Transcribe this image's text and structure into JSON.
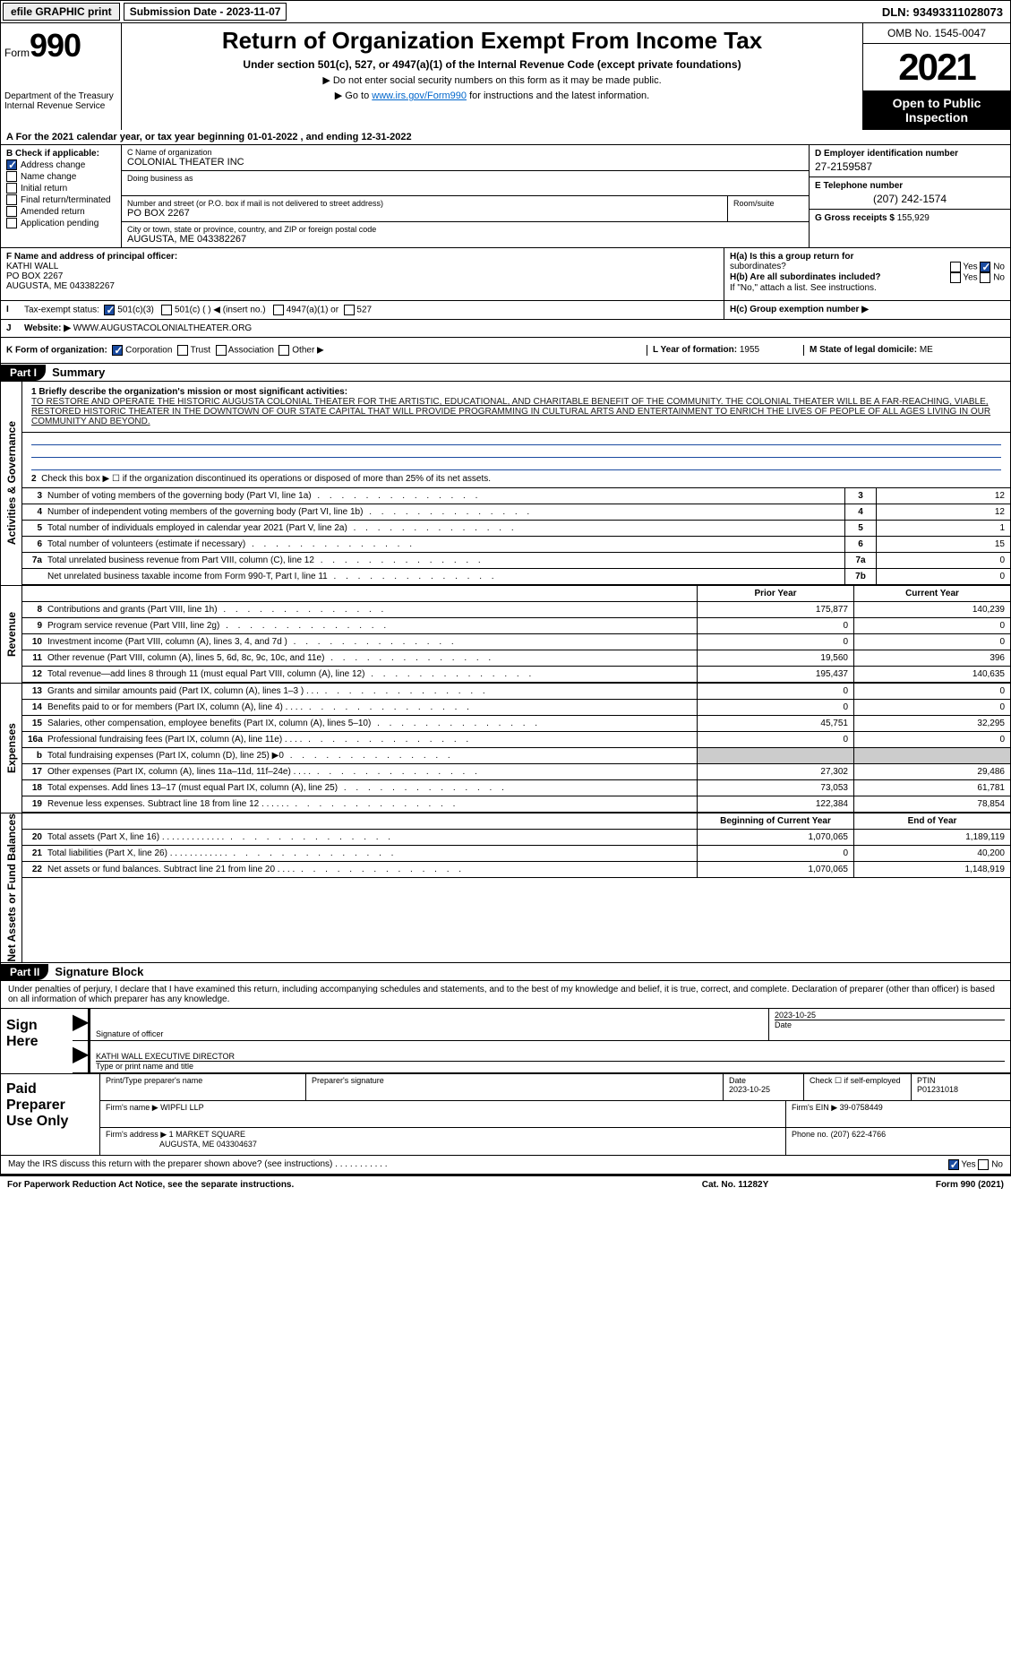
{
  "topbar": {
    "efile": "efile GRAPHIC print",
    "submission_date_label": "Submission Date - 2023-11-07",
    "dln": "DLN: 93493311028073"
  },
  "header": {
    "form_word": "Form",
    "form_number": "990",
    "dept": "Department of the Treasury",
    "irs": "Internal Revenue Service",
    "title": "Return of Organization Exempt From Income Tax",
    "subtitle": "Under section 501(c), 527, or 4947(a)(1) of the Internal Revenue Code (except private foundations)",
    "note1": "▶ Do not enter social security numbers on this form as it may be made public.",
    "note2_prefix": "▶ Go to ",
    "note2_link": "www.irs.gov/Form990",
    "note2_suffix": " for instructions and the latest information.",
    "omb": "OMB No. 1545-0047",
    "year": "2021",
    "open": "Open to Public Inspection"
  },
  "rowA": "A  For the 2021 calendar year, or tax year beginning 01-01-2022    , and ending 12-31-2022",
  "colB": {
    "header": "B Check if applicable:",
    "items": [
      {
        "label": "Address change",
        "checked": true
      },
      {
        "label": "Name change",
        "checked": false
      },
      {
        "label": "Initial return",
        "checked": false
      },
      {
        "label": "Final return/terminated",
        "checked": false
      },
      {
        "label": "Amended return",
        "checked": false
      },
      {
        "label": "Application pending",
        "checked": false
      }
    ]
  },
  "colC": {
    "name_label": "C Name of organization",
    "name": "COLONIAL THEATER INC",
    "dba_label": "Doing business as",
    "dba": "",
    "addr_label": "Number and street (or P.O. box if mail is not delivered to street address)",
    "addr": "PO BOX 2267",
    "room_label": "Room/suite",
    "city_label": "City or town, state or province, country, and ZIP or foreign postal code",
    "city": "AUGUSTA, ME  043382267"
  },
  "colD": {
    "label": "D Employer identification number",
    "ein": "27-2159587",
    "tel_label": "E Telephone number",
    "tel": "(207) 242-1574",
    "gross_label": "G Gross receipts $",
    "gross": "155,929"
  },
  "rowF": {
    "label": "F  Name and address of principal officer:",
    "name": "KATHI WALL",
    "addr": "PO BOX 2267",
    "city": "AUGUSTA, ME  043382267"
  },
  "rowH": {
    "ha_label": "H(a)  Is this a group return for",
    "ha_sub": "subordinates?",
    "hb_label": "H(b)  Are all subordinates included?",
    "hb_note": "If \"No,\" attach a list. See instructions.",
    "hc_label": "H(c)  Group exemption number ▶",
    "yes": "Yes",
    "no": "No"
  },
  "rowI": {
    "label": "I",
    "text": "Tax-exempt status:",
    "opt1": "501(c)(3)",
    "opt2": "501(c) (  ) ◀ (insert no.)",
    "opt3": "4947(a)(1) or",
    "opt4": "527"
  },
  "rowJ": {
    "label": "J",
    "text": "Website: ▶",
    "url": "WWW.AUGUSTACOLONIALTHEATER.ORG"
  },
  "rowK": {
    "label": "K Form of organization:",
    "corp": "Corporation",
    "trust": "Trust",
    "assoc": "Association",
    "other": "Other ▶",
    "year_label": "L Year of formation:",
    "year": "1955",
    "state_label": "M State of legal domicile:",
    "state": "ME"
  },
  "partI": {
    "header": "Part I",
    "title": "Summary",
    "side_gov": "Activities & Governance",
    "side_rev": "Revenue",
    "side_exp": "Expenses",
    "side_net": "Net Assets or Fund Balances",
    "line1_label": "1  Briefly describe the organization's mission or most significant activities:",
    "mission": "TO RESTORE AND OPERATE THE HISTORIC AUGUSTA COLONIAL THEATER FOR THE ARTISTIC, EDUCATIONAL, AND CHARITABLE BENEFIT OF THE COMMUNITY. THE COLONIAL THEATER WILL BE A FAR-REACHING, VIABLE, RESTORED HISTORIC THEATER IN THE DOWNTOWN OF OUR STATE CAPITAL THAT WILL PROVIDE PROGRAMMING IN CULTURAL ARTS AND ENTERTAINMENT TO ENRICH THE LIVES OF PEOPLE OF ALL AGES LIVING IN OUR COMMUNITY AND BEYOND.",
    "line2": "Check this box ▶ ☐  if the organization discontinued its operations or disposed of more than 25% of its net assets.",
    "rows_gov": [
      {
        "n": "3",
        "txt": "Number of voting members of the governing body (Part VI, line 1a)",
        "box": "3",
        "val": "12"
      },
      {
        "n": "4",
        "txt": "Number of independent voting members of the governing body (Part VI, line 1b)",
        "box": "4",
        "val": "12"
      },
      {
        "n": "5",
        "txt": "Total number of individuals employed in calendar year 2021 (Part V, line 2a)",
        "box": "5",
        "val": "1"
      },
      {
        "n": "6",
        "txt": "Total number of volunteers (estimate if necessary)",
        "box": "6",
        "val": "15"
      },
      {
        "n": "7a",
        "txt": "Total unrelated business revenue from Part VIII, column (C), line 12",
        "box": "7a",
        "val": "0"
      },
      {
        "n": "",
        "txt": "Net unrelated business taxable income from Form 990-T, Part I, line 11",
        "box": "7b",
        "val": "0"
      }
    ],
    "hdr_prior": "Prior Year",
    "hdr_current": "Current Year",
    "rows_rev": [
      {
        "n": "8",
        "txt": "Contributions and grants (Part VIII, line 1h)",
        "c1": "175,877",
        "c2": "140,239"
      },
      {
        "n": "9",
        "txt": "Program service revenue (Part VIII, line 2g)",
        "c1": "0",
        "c2": "0"
      },
      {
        "n": "10",
        "txt": "Investment income (Part VIII, column (A), lines 3, 4, and 7d )",
        "c1": "0",
        "c2": "0"
      },
      {
        "n": "11",
        "txt": "Other revenue (Part VIII, column (A), lines 5, 6d, 8c, 9c, 10c, and 11e)",
        "c1": "19,560",
        "c2": "396"
      },
      {
        "n": "12",
        "txt": "Total revenue—add lines 8 through 11 (must equal Part VIII, column (A), line 12)",
        "c1": "195,437",
        "c2": "140,635"
      }
    ],
    "rows_exp": [
      {
        "n": "13",
        "txt": "Grants and similar amounts paid (Part IX, column (A), lines 1–3 ) .  .  .",
        "c1": "0",
        "c2": "0"
      },
      {
        "n": "14",
        "txt": "Benefits paid to or for members (Part IX, column (A), line 4) .  .  .  .",
        "c1": "0",
        "c2": "0"
      },
      {
        "n": "15",
        "txt": "Salaries, other compensation, employee benefits (Part IX, column (A), lines 5–10)",
        "c1": "45,751",
        "c2": "32,295"
      },
      {
        "n": "16a",
        "txt": "Professional fundraising fees (Part IX, column (A), line 11e) .  .  .  .",
        "c1": "0",
        "c2": "0"
      },
      {
        "n": "b",
        "txt": "Total fundraising expenses (Part IX, column (D), line 25) ▶0",
        "c1": "",
        "c2": "",
        "gray": true
      },
      {
        "n": "17",
        "txt": "Other expenses (Part IX, column (A), lines 11a–11d, 11f–24e) .  .  .  .",
        "c1": "27,302",
        "c2": "29,486"
      },
      {
        "n": "18",
        "txt": "Total expenses. Add lines 13–17 (must equal Part IX, column (A), line 25)",
        "c1": "73,053",
        "c2": "61,781"
      },
      {
        "n": "19",
        "txt": "Revenue less expenses. Subtract line 18 from line 12 .  .  .  .  .  .",
        "c1": "122,384",
        "c2": "78,854"
      }
    ],
    "hdr_begin": "Beginning of Current Year",
    "hdr_end": "End of Year",
    "rows_net": [
      {
        "n": "20",
        "txt": "Total assets (Part X, line 16) .  .  .  .  .  .  .  .  .  .  .  .  .",
        "c1": "1,070,065",
        "c2": "1,189,119"
      },
      {
        "n": "21",
        "txt": "Total liabilities (Part X, line 26) .  .  .  .  .  .  .  .  .  .  .  .",
        "c1": "0",
        "c2": "40,200"
      },
      {
        "n": "22",
        "txt": "Net assets or fund balances. Subtract line 21 from line 20 .  .  .  .",
        "c1": "1,070,065",
        "c2": "1,148,919"
      }
    ]
  },
  "partII": {
    "header": "Part II",
    "title": "Signature Block",
    "declaration": "Under penalties of perjury, I declare that I have examined this return, including accompanying schedules and statements, and to the best of my knowledge and belief, it is true, correct, and complete. Declaration of preparer (other than officer) is based on all information of which preparer has any knowledge.",
    "sign_here": "Sign Here",
    "sig_officer": "Signature of officer",
    "sig_date": "2023-10-25",
    "date_label": "Date",
    "name_title": "KATHI WALL  EXECUTIVE DIRECTOR",
    "name_title_label": "Type or print name and title",
    "paid_prep": "Paid Preparer Use Only",
    "prep_name_label": "Print/Type preparer's name",
    "prep_sig_label": "Preparer's signature",
    "prep_date": "2023-10-25",
    "check_if": "Check ☐ if self-employed",
    "ptin_label": "PTIN",
    "ptin": "P01231018",
    "firm_name_label": "Firm's name    ▶",
    "firm_name": "WIPFLI LLP",
    "firm_ein_label": "Firm's EIN ▶",
    "firm_ein": "39-0758449",
    "firm_addr_label": "Firm's address ▶",
    "firm_addr1": "1 MARKET SQUARE",
    "firm_addr2": "AUGUSTA, ME  043304637",
    "phone_label": "Phone no.",
    "phone": "(207) 622-4766",
    "discuss": "May the IRS discuss this return with the preparer shown above? (see instructions)  .  .  .  .  .  .  .  .  .  .  ."
  },
  "footer": {
    "left": "For Paperwork Reduction Act Notice, see the separate instructions.",
    "mid": "Cat. No. 11282Y",
    "right": "Form 990 (2021)"
  }
}
